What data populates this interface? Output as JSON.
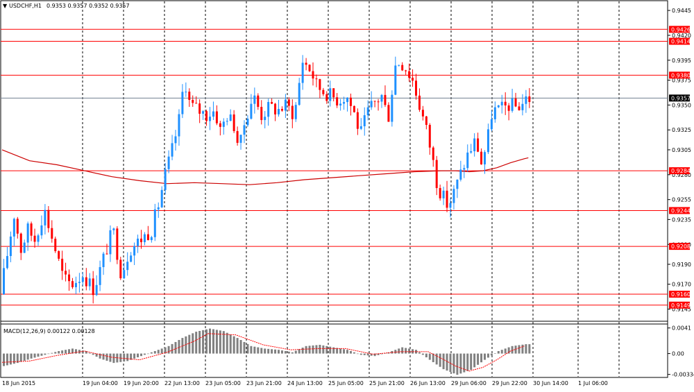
{
  "window": {
    "symbol_title": "USDCHF,H1",
    "ohlc_readout": "0.9353 0.9357 0.9352 0.9357"
  },
  "indicator": {
    "label": "MACD(12,26,9)",
    "values_readout": "0.00122 0.00128"
  },
  "colors": {
    "bull": "#1e90ff",
    "bear": "#ff0000",
    "level_line": "#ff0000",
    "ma_line": "#cc0000",
    "grid": "#000000",
    "current_price_line": "#708090",
    "histogram": "#808080",
    "signal": "#ff0000"
  },
  "chart_data": {
    "type": "candlestick",
    "symbol": "USDCHF",
    "timeframe": "H1",
    "y_range": [
      0.9137,
      0.9452
    ],
    "y_ticks": [
      "0.9445",
      "0.9420",
      "0.9395",
      "0.9375",
      "0.9350",
      "0.9325",
      "0.9305",
      "0.9280",
      "0.9255",
      "0.9235",
      "0.9210",
      "0.9190",
      "0.9170",
      "0.9145"
    ],
    "x_tick_labels": [
      "18 Jun 2015",
      "19 Jun 04:00",
      "19 Jun 20:00",
      "22 Jun 13:00",
      "23 Jun 05:00",
      "23 Jun 21:00",
      "24 Jun 13:00",
      "25 Jun 05:00",
      "25 Jun 21:00",
      "26 Jun 13:00",
      "29 Jun 06:00",
      "29 Jun 22:00",
      "30 Jun 14:00",
      "1 Jul 06:00"
    ],
    "horizontal_levels": [
      {
        "price": 0.9426,
        "label": "0.9426"
      },
      {
        "price": 0.9414,
        "label": "0.9414"
      },
      {
        "price": 0.938,
        "label": "0.9380"
      },
      {
        "price": 0.9284,
        "label": "0.9284"
      },
      {
        "price": 0.9244,
        "label": "0.9244"
      },
      {
        "price": 0.9208,
        "label": "0.9208"
      },
      {
        "price": 0.916,
        "label": "0.9160"
      },
      {
        "price": 0.9149,
        "label": "0.9149"
      }
    ],
    "current_price": {
      "price": 0.9357,
      "label": "0.9357"
    },
    "price_path": [
      [
        0.0,
        0.916
      ],
      [
        1.0,
        0.924
      ],
      [
        1.5,
        0.9205
      ],
      [
        2.0,
        0.9225
      ],
      [
        2.5,
        0.9215
      ],
      [
        3.2,
        0.9245
      ],
      [
        3.8,
        0.9215
      ],
      [
        4.6,
        0.9175
      ],
      [
        5.2,
        0.917
      ],
      [
        6.0,
        0.918
      ],
      [
        6.8,
        0.9165
      ],
      [
        7.6,
        0.92
      ],
      [
        8.2,
        0.9225
      ],
      [
        8.8,
        0.918
      ],
      [
        9.4,
        0.9205
      ],
      [
        10.2,
        0.9215
      ],
      [
        11.0,
        0.9225
      ],
      [
        11.5,
        0.925
      ],
      [
        12.0,
        0.928
      ],
      [
        12.6,
        0.931
      ],
      [
        13.0,
        0.9335
      ],
      [
        13.4,
        0.9378
      ],
      [
        13.8,
        0.935
      ],
      [
        14.4,
        0.9345
      ],
      [
        15.0,
        0.934
      ],
      [
        15.6,
        0.9345
      ],
      [
        16.0,
        0.9325
      ],
      [
        16.5,
        0.934
      ],
      [
        17.0,
        0.933
      ],
      [
        17.4,
        0.9305
      ],
      [
        17.8,
        0.9335
      ],
      [
        18.4,
        0.936
      ],
      [
        19.0,
        0.934
      ],
      [
        19.6,
        0.9348
      ],
      [
        20.2,
        0.9345
      ],
      [
        20.8,
        0.935
      ],
      [
        21.4,
        0.934
      ],
      [
        22.0,
        0.9395
      ],
      [
        22.6,
        0.9385
      ],
      [
        23.0,
        0.937
      ],
      [
        23.4,
        0.9365
      ],
      [
        24.0,
        0.936
      ],
      [
        24.6,
        0.9355
      ],
      [
        25.2,
        0.936
      ],
      [
        25.8,
        0.934
      ],
      [
        26.2,
        0.932
      ],
      [
        26.8,
        0.9345
      ],
      [
        27.4,
        0.9355
      ],
      [
        27.8,
        0.936
      ],
      [
        28.2,
        0.9335
      ],
      [
        28.8,
        0.9395
      ],
      [
        29.4,
        0.939
      ],
      [
        30.0,
        0.9375
      ],
      [
        30.4,
        0.9355
      ],
      [
        31.0,
        0.9325
      ],
      [
        31.4,
        0.93
      ],
      [
        31.8,
        0.927
      ],
      [
        32.2,
        0.9258
      ],
      [
        32.6,
        0.9248
      ],
      [
        33.0,
        0.9262
      ],
      [
        33.6,
        0.9285
      ],
      [
        34.0,
        0.93
      ],
      [
        34.6,
        0.9315
      ],
      [
        35.0,
        0.9292
      ],
      [
        35.4,
        0.931
      ],
      [
        35.8,
        0.9345
      ],
      [
        36.4,
        0.9345
      ],
      [
        37.0,
        0.935
      ],
      [
        37.6,
        0.9348
      ],
      [
        38.0,
        0.9352
      ],
      [
        38.3,
        0.9357
      ]
    ],
    "moving_average": [
      [
        0,
        0.9305
      ],
      [
        2,
        0.9294
      ],
      [
        4,
        0.929
      ],
      [
        6,
        0.9284
      ],
      [
        8,
        0.9278
      ],
      [
        10,
        0.9274
      ],
      [
        12,
        0.9271
      ],
      [
        14,
        0.9272
      ],
      [
        16,
        0.9271
      ],
      [
        18,
        0.927
      ],
      [
        20,
        0.9272
      ],
      [
        22,
        0.9275
      ],
      [
        24,
        0.9277
      ],
      [
        26,
        0.9279
      ],
      [
        28,
        0.9281
      ],
      [
        30,
        0.9283
      ],
      [
        32,
        0.9284
      ],
      [
        33,
        0.9284
      ],
      [
        34,
        0.9283
      ],
      [
        35,
        0.9284
      ],
      [
        36,
        0.9287
      ],
      [
        37,
        0.9292
      ],
      [
        38,
        0.9296
      ],
      [
        38.3,
        0.9297
      ]
    ],
    "macd": {
      "label": "MACD(12,26,9)",
      "main": 0.00122,
      "signal": 0.00128,
      "y_range": [
        -0.0036,
        0.0044
      ],
      "y_ticks": [
        "0.0041",
        "0.00",
        "-0.00334"
      ],
      "histogram": [
        [
          0,
          -0.002
        ],
        [
          1,
          -0.0015
        ],
        [
          2,
          -0.0008
        ],
        [
          3,
          -0.0002
        ],
        [
          4,
          0.0004
        ],
        [
          5,
          0.0008
        ],
        [
          6,
          0.0004
        ],
        [
          7,
          -0.0008
        ],
        [
          8,
          -0.0015
        ],
        [
          9,
          -0.0012
        ],
        [
          10,
          -0.0004
        ],
        [
          11,
          0.0004
        ],
        [
          12,
          0.0012
        ],
        [
          13,
          0.0025
        ],
        [
          14,
          0.0035
        ],
        [
          15,
          0.004
        ],
        [
          16,
          0.0036
        ],
        [
          17,
          0.0025
        ],
        [
          18,
          0.0012
        ],
        [
          19,
          0.0008
        ],
        [
          20,
          0.0006
        ],
        [
          21,
          0.0002
        ],
        [
          22,
          0.0012
        ],
        [
          23,
          0.0014
        ],
        [
          24,
          0.001
        ],
        [
          25,
          0.0006
        ],
        [
          26,
          -0.0002
        ],
        [
          27,
          -0.0004
        ],
        [
          28,
          0.0002
        ],
        [
          29,
          0.001
        ],
        [
          30,
          0.0006
        ],
        [
          31,
          -0.001
        ],
        [
          32,
          -0.0025
        ],
        [
          33,
          -0.0034
        ],
        [
          34,
          -0.0026
        ],
        [
          35,
          -0.001
        ],
        [
          36,
          0.0004
        ],
        [
          37,
          0.0012
        ],
        [
          38,
          0.0015
        ]
      ],
      "signal_line": [
        [
          0,
          -0.0014
        ],
        [
          2,
          -0.0012
        ],
        [
          4,
          -0.0003
        ],
        [
          6,
          0.0004
        ],
        [
          8,
          -0.0006
        ],
        [
          10,
          -0.001
        ],
        [
          12,
          0.0002
        ],
        [
          14,
          0.002
        ],
        [
          15,
          0.0032
        ],
        [
          17,
          0.003
        ],
        [
          19,
          0.0014
        ],
        [
          21,
          0.0006
        ],
        [
          23,
          0.0008
        ],
        [
          25,
          0.0008
        ],
        [
          27,
          -0.0001
        ],
        [
          29,
          0.0003
        ],
        [
          31,
          0.0003
        ],
        [
          32,
          -0.0008
        ],
        [
          33,
          -0.002
        ],
        [
          34,
          -0.0028
        ],
        [
          35,
          -0.0022
        ],
        [
          36,
          -0.001
        ],
        [
          37,
          0.0004
        ],
        [
          38,
          0.0012
        ]
      ]
    }
  }
}
